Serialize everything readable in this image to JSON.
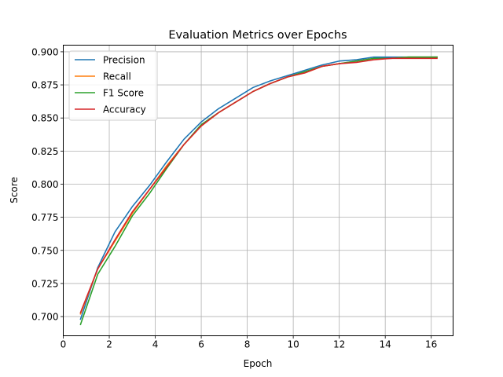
{
  "chart_data": {
    "type": "line",
    "title": "Evaluation Metrics over Epochs",
    "xlabel": "Epoch",
    "ylabel": "Score",
    "xlim": [
      0,
      16.95
    ],
    "ylim": [
      0.6855,
      0.905
    ],
    "xticks": [
      0,
      2,
      4,
      6,
      8,
      10,
      12,
      14,
      16
    ],
    "yticks": [
      0.7,
      0.725,
      0.75,
      0.775,
      0.8,
      0.825,
      0.85,
      0.875,
      0.9
    ],
    "grid": true,
    "legend_position": "upper-left",
    "x": [
      0.75,
      1.5,
      2.25,
      3.0,
      3.75,
      4.5,
      5.25,
      6.0,
      6.75,
      7.5,
      8.25,
      9.0,
      9.75,
      10.5,
      11.25,
      12.0,
      12.75,
      13.5,
      14.25,
      15.0,
      15.75,
      16.25
    ],
    "series": [
      {
        "name": "Precision",
        "color": "#1f77b4",
        "values": [
          0.698,
          0.737,
          0.764,
          0.783,
          0.799,
          0.817,
          0.834,
          0.847,
          0.857,
          0.865,
          0.873,
          0.878,
          0.882,
          0.886,
          0.89,
          0.893,
          0.894,
          0.896,
          0.896,
          0.896,
          0.896,
          0.896
        ]
      },
      {
        "name": "Recall",
        "color": "#ff7f0e",
        "values": [
          0.702,
          0.736,
          0.757,
          0.778,
          0.796,
          0.814,
          0.83,
          0.844,
          0.854,
          0.862,
          0.87,
          0.876,
          0.881,
          0.884,
          0.889,
          0.891,
          0.893,
          0.895,
          0.895,
          0.896,
          0.896,
          0.896
        ]
      },
      {
        "name": "F1 Score",
        "color": "#2ca02c",
        "values": [
          0.694,
          0.732,
          0.753,
          0.776,
          0.793,
          0.812,
          0.83,
          0.845,
          0.854,
          0.862,
          0.87,
          0.876,
          0.881,
          0.885,
          0.889,
          0.891,
          0.893,
          0.895,
          0.895,
          0.896,
          0.896,
          0.896
        ]
      },
      {
        "name": "Accuracy",
        "color": "#d62728",
        "values": [
          0.703,
          0.736,
          0.758,
          0.779,
          0.796,
          0.813,
          0.83,
          0.844,
          0.854,
          0.862,
          0.87,
          0.876,
          0.881,
          0.884,
          0.889,
          0.891,
          0.892,
          0.894,
          0.895,
          0.895,
          0.895,
          0.895
        ]
      }
    ]
  }
}
